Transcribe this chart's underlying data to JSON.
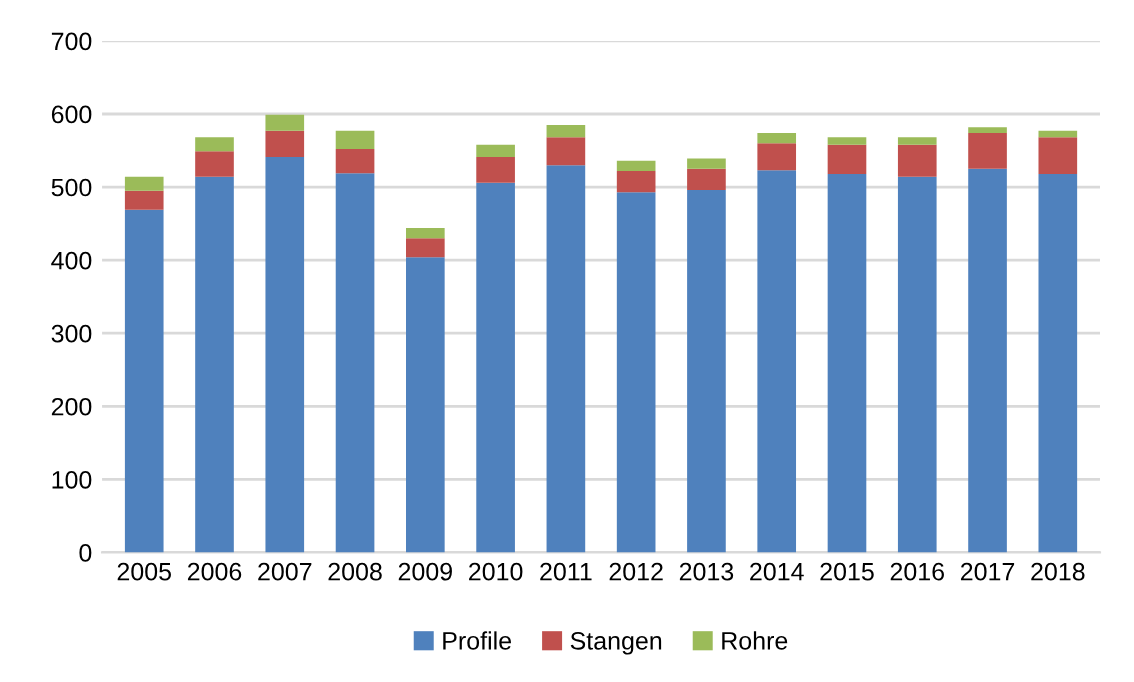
{
  "chart_data": {
    "type": "bar",
    "stacked": true,
    "categories": [
      "2005",
      "2006",
      "2007",
      "2008",
      "2009",
      "2010",
      "2011",
      "2012",
      "2013",
      "2014",
      "2015",
      "2016",
      "2017",
      "2018"
    ],
    "series": [
      {
        "name": "Profile",
        "color": "#4f81bd",
        "values": [
          469,
          514,
          541,
          519,
          404,
          506,
          530,
          493,
          496,
          523,
          518,
          514,
          525,
          518
        ]
      },
      {
        "name": "Stangen",
        "color": "#c0504d",
        "values": [
          26,
          35,
          36,
          33,
          26,
          35,
          38,
          29,
          29,
          37,
          40,
          44,
          49,
          50
        ]
      },
      {
        "name": "Rohre",
        "color": "#9bbb59",
        "values": [
          19,
          19,
          22,
          25,
          14,
          17,
          17,
          14,
          14,
          14,
          10,
          10,
          8,
          9
        ]
      }
    ],
    "ylim": [
      0,
      700
    ],
    "yticks": [
      0,
      100,
      200,
      300,
      400,
      500,
      600,
      700
    ],
    "grid": "y",
    "legend": "bottom"
  }
}
